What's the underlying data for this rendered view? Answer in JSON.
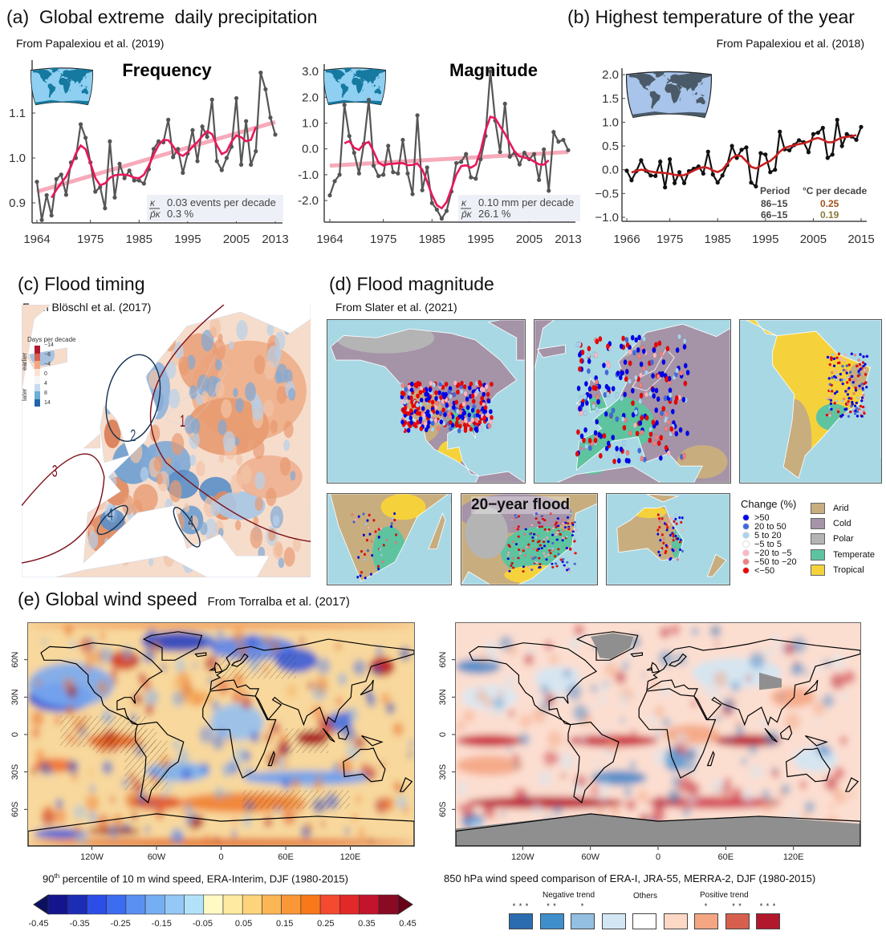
{
  "panel_a": {
    "label": "(a)",
    "title": "Global extreme  daily precipitation",
    "source": "From Papalexiou et al. (2019)"
  },
  "panel_b": {
    "label": "(b)",
    "title": "Highest temperature of the year",
    "source": "From Papalexiou et al. (2018)"
  },
  "panel_c": {
    "label": "(c)",
    "title": "Flood timing",
    "source": "From Blöschl et al. (2017)",
    "legend_title": "Days per decade",
    "legend_ticks": [
      "−14",
      "−8",
      "−4",
      "0",
      "4",
      "8",
      "14"
    ],
    "legend_colors": [
      "#b2182b",
      "#d6604d",
      "#f4a582",
      "#fbe3d3",
      "#f7f7f7",
      "#c6dbef",
      "#6baed6",
      "#2166ac"
    ],
    "earlier_label": "earlier",
    "later_label": "later",
    "regions": [
      "1",
      "2",
      "3",
      "4",
      "4"
    ]
  },
  "panel_d": {
    "label": "(d)",
    "title": "Flood magnitude",
    "source": "From Slater et al. (2021)",
    "inset_label": "20−year flood",
    "change_legend": {
      "title": "Change (%)",
      "items": [
        {
          "label": ">50",
          "color": "#0000ee"
        },
        {
          "label": "20 to 50",
          "color": "#4169e1"
        },
        {
          "label": "5 to 20",
          "color": "#a9d3ee"
        },
        {
          "label": "−5 to 5",
          "color": "#ffffff"
        },
        {
          "label": "−20 to −5",
          "color": "#ffb6c1"
        },
        {
          "label": "−50 to −20",
          "color": "#f08080"
        },
        {
          "label": "<−50",
          "color": "#ee0000"
        }
      ]
    },
    "climate_legend": [
      {
        "label": "Arid",
        "color": "#c8ad7f"
      },
      {
        "label": "Cold",
        "color": "#a593a8"
      },
      {
        "label": "Polar",
        "color": "#b4b4b4"
      },
      {
        "label": "Temperate",
        "color": "#5ec4a0"
      },
      {
        "label": "Tropical",
        "color": "#f5d23c"
      }
    ],
    "ocean_color": "#a8d8e4"
  },
  "panel_e": {
    "label": "(e)",
    "title": "Global wind speed",
    "source": "From Torralba et al. (2017)",
    "lat_ticks": [
      "60N",
      "30N",
      "0",
      "30S",
      "60S"
    ],
    "lon_ticks": [
      "120W",
      "60W",
      "0",
      "60E",
      "120E"
    ],
    "map1_caption": {
      "pre": "90",
      "sup": "th",
      "post": " percentile of 10 m wind speed, ERA-Interim, DJF (1980-2015)"
    },
    "map2_caption": "850 hPa wind speed comparison of ERA-I, JRA-55, MERRA-2, DJF (1980-2015)",
    "colorbar": {
      "ticks": [
        "-0.45",
        "-0.35",
        "-0.25",
        "-0.15",
        "-0.05",
        "0.05",
        "0.15",
        "0.25",
        "0.35",
        "0.45"
      ],
      "colors": [
        "#14148c",
        "#1c2cb4",
        "#2c4ee6",
        "#3c6cf0",
        "#5a90f2",
        "#76aef4",
        "#94c8f6",
        "#b2e2fa",
        "#fff9c4",
        "#feeaa0",
        "#fdd47c",
        "#fcb656",
        "#fa9838",
        "#f8781a",
        "#f44a30",
        "#e22828",
        "#c2142c",
        "#8a0a24"
      ],
      "low_color": "#0c1060",
      "high_color": "#6a0018"
    },
    "trend_legend": {
      "negative_label": "Negative trend",
      "others_label": "Others",
      "positive_label": "Positive trend",
      "items": [
        {
          "stars": "* * *",
          "color": "#2b6cb0"
        },
        {
          "stars": "* *",
          "color": "#3f8fcc"
        },
        {
          "stars": "*",
          "color": "#92bfe2"
        },
        {
          "stars": "",
          "color": "#d2e6f3"
        },
        {
          "stars": "",
          "color": "#ffffff"
        },
        {
          "stars": "",
          "color": "#fdd8c4"
        },
        {
          "stars": "*",
          "color": "#f4a582"
        },
        {
          "stars": "* *",
          "color": "#d6604d"
        },
        {
          "stars": "* * *",
          "color": "#b2182b"
        }
      ]
    }
  },
  "chart_data": [
    {
      "type": "line",
      "title": "Frequency",
      "x": [
        1964,
        1965,
        1966,
        1967,
        1968,
        1969,
        1970,
        1971,
        1972,
        1973,
        1974,
        1975,
        1976,
        1977,
        1978,
        1979,
        1980,
        1981,
        1982,
        1983,
        1984,
        1985,
        1986,
        1987,
        1988,
        1989,
        1990,
        1991,
        1992,
        1993,
        1994,
        1995,
        1996,
        1997,
        1998,
        1999,
        2000,
        2001,
        2002,
        2003,
        2004,
        2005,
        2006,
        2007,
        2008,
        2009,
        2010,
        2011,
        2012,
        2013
      ],
      "values": [
        0.947,
        0.862,
        0.917,
        0.872,
        0.953,
        0.963,
        0.918,
        0.99,
        1.0,
        1.075,
        1.045,
        0.99,
        0.925,
        0.935,
        0.888,
        1.037,
        0.912,
        0.987,
        0.955,
        0.972,
        0.95,
        0.95,
        0.943,
        0.975,
        1.02,
        1.037,
        1.035,
        1.085,
        1.002,
        1.02,
        0.967,
        1.01,
        1.062,
        0.993,
        1.07,
        1.047,
        1.13,
        0.993,
        0.973,
        1.0,
        1.025,
        1.133,
        0.985,
        1.082,
        0.985,
        1.015,
        1.19,
        1.153,
        1.09,
        1.052
      ],
      "trend": {
        "x": [
          1964,
          2013
        ],
        "y": [
          0.925,
          1.08
        ]
      },
      "x_ticks": [
        "1964",
        "1975",
        "1985",
        "1995",
        "2005",
        "2013"
      ],
      "y_ticks": [
        "1.1",
        "1.0",
        "0.9"
      ],
      "ylim": [
        0.86,
        1.2
      ],
      "annotation": {
        "k_symbol": "κ",
        "p_symbol": "p̄κ",
        "k_value": "0.03 events per decade",
        "p_value": "0.3 %"
      }
    },
    {
      "type": "line",
      "title": "Magnitude",
      "x": [
        1964,
        1965,
        1966,
        1967,
        1968,
        1969,
        1970,
        1971,
        1972,
        1973,
        1974,
        1975,
        1976,
        1977,
        1978,
        1979,
        1980,
        1981,
        1982,
        1983,
        1984,
        1985,
        1986,
        1987,
        1988,
        1989,
        1990,
        1991,
        1992,
        1993,
        1994,
        1995,
        1996,
        1997,
        1998,
        1999,
        2000,
        2001,
        2002,
        2003,
        2004,
        2005,
        2006,
        2007,
        2008,
        2009,
        2010,
        2011,
        2012,
        2013
      ],
      "values": [
        -1.8,
        -1.25,
        -1.0,
        1.7,
        0.5,
        -0.15,
        -0.95,
        0.2,
        1.9,
        -0.65,
        -1.05,
        -1.0,
        0.12,
        -0.9,
        -0.95,
        0.35,
        -0.95,
        -1.75,
        1.3,
        -1.6,
        -0.72,
        -2.1,
        -2.35,
        -2.7,
        -2.4,
        -1.65,
        -0.55,
        -0.5,
        -0.2,
        -1.1,
        -1.15,
        -0.4,
        0.5,
        3.0,
        1.1,
        -0.12,
        1.75,
        -0.3,
        -0.15,
        -0.6,
        -0.15,
        -0.4,
        -0.2,
        -1.2,
        -0.02,
        -1.62,
        0.65,
        0.28,
        0.35,
        -0.05
      ],
      "trend": {
        "x": [
          1964,
          2013
        ],
        "y": [
          -0.65,
          -0.12
        ]
      },
      "x_ticks": [
        "1964",
        "1975",
        "1985",
        "1995",
        "2005",
        "2013"
      ],
      "y_ticks": [
        "3.0",
        "2.0",
        "1.0",
        "0.0",
        "-1.0",
        "-2.0"
      ],
      "ylim": [
        -2.8,
        3.1
      ],
      "annotation": {
        "k_symbol": "κ",
        "p_symbol": "p̄κ",
        "k_value": "0.10 mm per decade",
        "p_value": "26.1 %"
      }
    },
    {
      "type": "line",
      "title": "",
      "x": [
        1966,
        1967,
        1968,
        1969,
        1970,
        1971,
        1972,
        1973,
        1974,
        1975,
        1976,
        1977,
        1978,
        1979,
        1980,
        1981,
        1982,
        1983,
        1984,
        1985,
        1986,
        1987,
        1988,
        1989,
        1990,
        1991,
        1992,
        1993,
        1994,
        1995,
        1996,
        1997,
        1998,
        1999,
        2000,
        2001,
        2002,
        2003,
        2004,
        2005,
        2006,
        2007,
        2008,
        2009,
        2010,
        2011,
        2012,
        2013,
        2014,
        2015
      ],
      "values": [
        -0.02,
        -0.22,
        -0.03,
        0.2,
        -0.02,
        -0.12,
        -0.13,
        0.17,
        -0.37,
        0.22,
        -0.28,
        -0.05,
        -0.28,
        -0.03,
        0.02,
        0.07,
        -0.08,
        0.38,
        -0.1,
        -0.27,
        -0.12,
        0.1,
        0.5,
        0.25,
        0.42,
        0.47,
        -0.27,
        -0.35,
        0.35,
        0.32,
        -0.05,
        0.0,
        0.8,
        0.43,
        0.41,
        0.52,
        0.62,
        0.58,
        0.37,
        0.75,
        0.78,
        0.88,
        0.25,
        0.32,
        1.05,
        0.5,
        0.75,
        0.7,
        0.63,
        0.9
      ],
      "x_ticks": [
        "1966",
        "1975",
        "1985",
        "1995",
        "2005",
        "2015"
      ],
      "y_ticks": [
        "2.0",
        "1.5",
        "1.0",
        "0.5",
        "0.0",
        "−0.5",
        "−1.0"
      ],
      "ylim": [
        -1.0,
        2.0
      ],
      "table": {
        "header": [
          "Period",
          "°C per decade"
        ],
        "rows": [
          [
            "86–15",
            "0.25"
          ],
          [
            "66–15",
            "0.19"
          ]
        ],
        "value_colors": [
          "#a0521e",
          "#8a7a3a"
        ]
      }
    }
  ]
}
